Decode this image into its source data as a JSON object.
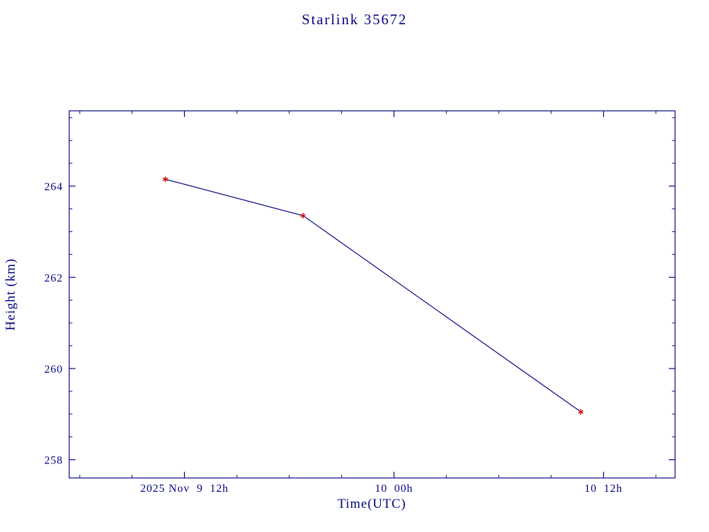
{
  "chart_data": {
    "type": "line",
    "title": "Starlink 35672",
    "xlabel": "Time(UTC)",
    "ylabel": "Height (km)",
    "x_unit": "hours since 2025 Nov 9 00:00 UTC",
    "points": [
      {
        "t_hours": 10.9,
        "height_km": 264.15
      },
      {
        "t_hours": 18.8,
        "height_km": 263.35
      },
      {
        "t_hours": 34.7,
        "height_km": 259.05
      }
    ],
    "xlim": [
      5.4,
      40.1
    ],
    "ylim": [
      257.6,
      265.65
    ],
    "xticks": [
      {
        "value": 12,
        "label": "2025 Nov  9  12h"
      },
      {
        "value": 24,
        "label": "10  00h"
      },
      {
        "value": 36,
        "label": "10  12h"
      }
    ],
    "x_minor_step": 3,
    "yticks": [
      {
        "value": 258,
        "label": "258"
      },
      {
        "value": 260,
        "label": "260"
      },
      {
        "value": 262,
        "label": "262"
      },
      {
        "value": 264,
        "label": "264"
      }
    ],
    "y_minor_step": 0.5,
    "grid": false,
    "legend": null,
    "colors": {
      "text": "#000080",
      "axis": "#000080",
      "line": "#000080",
      "marker": "#cc0000",
      "background": "#ffffff"
    }
  }
}
